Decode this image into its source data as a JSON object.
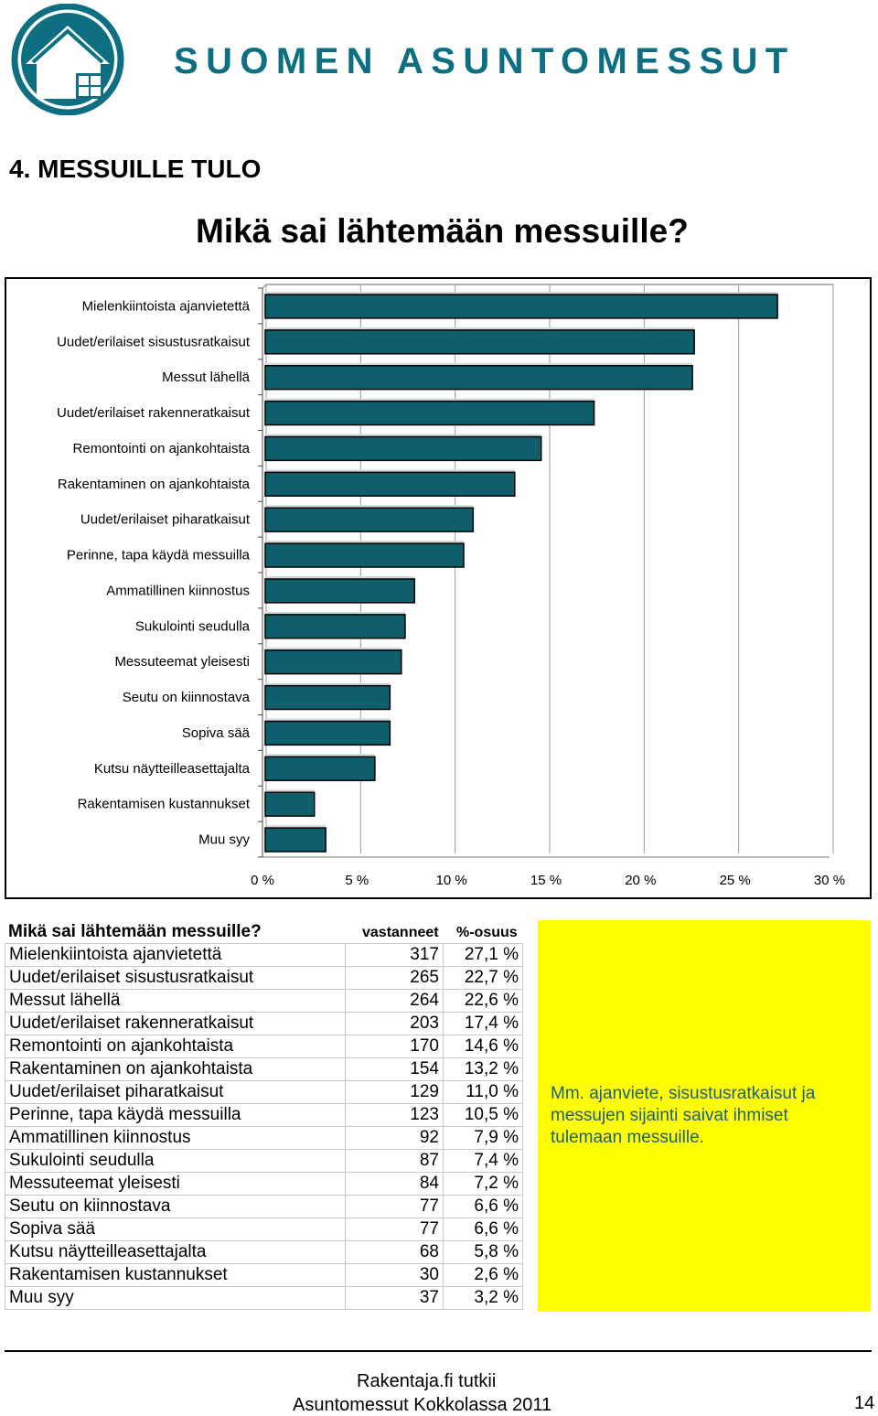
{
  "brand": {
    "logo_icon": "house-logo-icon",
    "name": "SUOMEN ASUNTOMESSUT",
    "color": "#0e6f82"
  },
  "section_title": "4. MESSUILLE TULO",
  "main_title": "Mikä sai lähtemään messuille?",
  "chart_data": {
    "type": "bar",
    "orientation": "horizontal",
    "title": "",
    "xlabel": "",
    "ylabel": "",
    "bar_color": "#0e5f6b",
    "grid": true,
    "xlim": [
      0,
      30
    ],
    "xticks": [
      "0 %",
      "5 %",
      "10 %",
      "15 %",
      "20 %",
      "25 %",
      "30 %"
    ],
    "xtick_values": [
      0,
      5,
      10,
      15,
      20,
      25,
      30
    ],
    "categories": [
      "Mielenkiintoista ajanvietettä",
      "Uudet/erilaiset sisustusratkaisut",
      "Messut lähellä",
      "Uudet/erilaiset rakenneratkaisut",
      "Remontointi on ajankohtaista",
      "Rakentaminen on ajankohtaista",
      "Uudet/erilaiset piharatkaisut",
      "Perinne, tapa käydä messuilla",
      "Ammatillinen kiinnostus",
      "Sukulointi seudulla",
      "Messuteemat yleisesti",
      "Seutu on kiinnostava",
      "Sopiva sää",
      "Kutsu näytteilleasettajalta",
      "Rakentamisen kustannukset",
      "Muu syy"
    ],
    "values": [
      27.1,
      22.7,
      22.6,
      17.4,
      14.6,
      13.2,
      11.0,
      10.5,
      7.9,
      7.4,
      7.2,
      6.6,
      6.6,
      5.8,
      2.6,
      3.2
    ]
  },
  "table": {
    "heading": "Mikä sai lähtemään messuille?",
    "col_respondents": "vastanneet",
    "col_share": "%-osuus",
    "rows": [
      {
        "label": "Mielenkiintoista ajanvietettä",
        "count": "317",
        "pct": "27,1 %"
      },
      {
        "label": "Uudet/erilaiset sisustusratkaisut",
        "count": "265",
        "pct": "22,7 %"
      },
      {
        "label": "Messut lähellä",
        "count": "264",
        "pct": "22,6 %"
      },
      {
        "label": "Uudet/erilaiset rakenneratkaisut",
        "count": "203",
        "pct": "17,4 %"
      },
      {
        "label": "Remontointi on ajankohtaista",
        "count": "170",
        "pct": "14,6 %"
      },
      {
        "label": "Rakentaminen on ajankohtaista",
        "count": "154",
        "pct": "13,2 %"
      },
      {
        "label": "Uudet/erilaiset piharatkaisut",
        "count": "129",
        "pct": "11,0 %"
      },
      {
        "label": "Perinne, tapa käydä messuilla",
        "count": "123",
        "pct": "10,5 %"
      },
      {
        "label": "Ammatillinen kiinnostus",
        "count": "92",
        "pct": "7,9 %"
      },
      {
        "label": "Sukulointi seudulla",
        "count": "87",
        "pct": "7,4 %"
      },
      {
        "label": "Messuteemat yleisesti",
        "count": "84",
        "pct": "7,2 %"
      },
      {
        "label": "Seutu on kiinnostava",
        "count": "77",
        "pct": "6,6 %"
      },
      {
        "label": "Sopiva sää",
        "count": "77",
        "pct": "6,6 %"
      },
      {
        "label": "Kutsu näytteilleasettajalta",
        "count": "68",
        "pct": "5,8 %"
      },
      {
        "label": "Rakentamisen kustannukset",
        "count": "30",
        "pct": "2,6 %"
      },
      {
        "label": "Muu syy",
        "count": "37",
        "pct": "3,2 %"
      }
    ]
  },
  "note": {
    "text": "Mm. ajanviete, sisustusratkaisut ja messujen sijainti saivat ihmiset tulemaan messuille.",
    "background": "#ffff00",
    "text_color": "#1c5c8c"
  },
  "footer": {
    "line1": "Rakentaja.fi tutkii",
    "line2": "Asuntomessut Kokkolassa 2011",
    "page_number": "14"
  }
}
